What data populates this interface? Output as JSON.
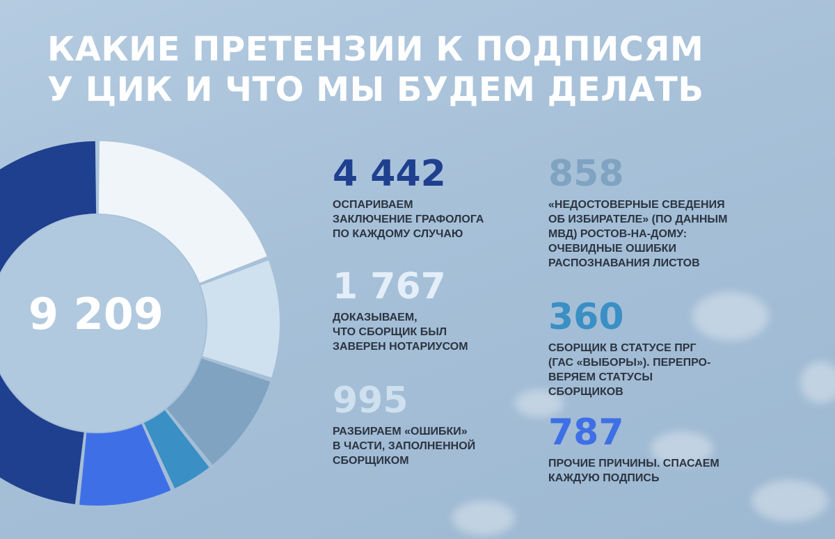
{
  "title_lines": [
    "КАКИЕ ПРЕТЕНЗИИ К ПОДПИСЯМ",
    "У ЦИК И ЧТО МЫ БУДЕМ ДЕЛАТЬ"
  ],
  "total": "9 209",
  "stats": [
    {
      "number": "4 442",
      "color": "#1f3f8f",
      "lines": [
        "ОСПАРИВАЕМ",
        "ЗАКЛЮЧЕНИЕ ГРАФОЛОГА",
        "ПО КАЖДОМУ СЛУЧАЮ"
      ]
    },
    {
      "number": "1 767",
      "color": "#e3eef8",
      "lines": [
        "ДОКАЗЫВАЕМ,",
        "ЧТО СБОРЩИК БЫЛ",
        "ЗАВЕРЕН НОТАРИУСОМ"
      ]
    },
    {
      "number": "995",
      "color": "#cfe0ee",
      "lines": [
        "РАЗБИРАЕМ «ОШИБКИ»",
        "В ЧАСТИ, ЗАПОЛНЕННОЙ",
        "СБОРЩИКОМ"
      ]
    },
    {
      "number": "858",
      "color": "#7fa3c1",
      "lines": [
        "«НЕДОСТОВЕРНЫЕ СВЕДЕНИЯ",
        "ОБ ИЗБИРАТЕЛЕ» (ПО ДАННЫМ",
        "МВД) РОСТОВ-НА-ДОМУ:",
        "ОЧЕВИДНЫЕ ОШИБКИ",
        "РАСПОЗНАВАНИЯ ЛИСТОВ"
      ]
    },
    {
      "number": "360",
      "color": "#3a8fc4",
      "lines": [
        "СБОРЩИК В СТАТУСЕ ПРГ",
        "(ГАС «ВЫБОРЫ»). ПЕРЕПРО-",
        "ВЕРЯЕМ СТАТУСЫ",
        "СБОРЩИКОВ"
      ]
    },
    {
      "number": "787",
      "color": "#3f6fe6",
      "lines": [
        "ПРОЧИЕ ПРИЧИНЫ. СПАСАЕМ",
        "КАЖДУЮ ПОДПИСЬ"
      ]
    }
  ],
  "chart_data": {
    "type": "pie",
    "total": 9209,
    "start_angle_deg": 0,
    "categories": [
      "4 442",
      "1 767",
      "995",
      "858",
      "360",
      "787"
    ],
    "values": [
      4442,
      1767,
      995,
      858,
      360,
      787
    ],
    "slice_order": [
      "1 767",
      "995",
      "858",
      "360",
      "787",
      "4 442"
    ],
    "colors": [
      "#1f3f8f",
      "#f0f5fa",
      "#cfe0ee",
      "#7fa3c1",
      "#3a8fc4",
      "#3f6fe6"
    ],
    "hole_color": "#b1c9df"
  }
}
